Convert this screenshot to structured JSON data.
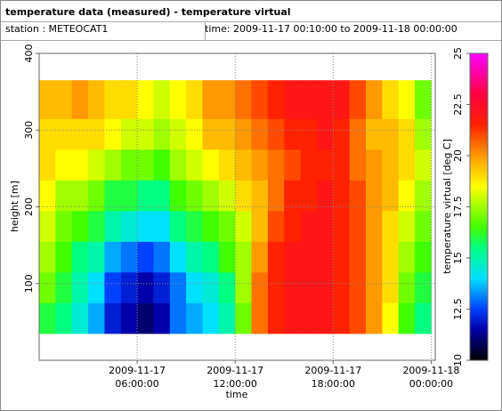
{
  "header": {
    "title": "temperature data (measured) - temperature virtual",
    "station": "station : METEOCAT1",
    "time_range": "time: 2009-11-17 00:10:00 to 2009-11-18 00:00:00"
  },
  "chart_data": {
    "type": "heatmap",
    "x_label": "time",
    "y_label": "height [m]",
    "colorbar_label": "temperature virtual [deg C]",
    "xlim": [
      "2009-11-17 00:00:00",
      "2009-11-18 00:15:00"
    ],
    "xticks": [
      {
        "value": "2009-11-17 06:00:00",
        "label": "2009-11-17 06:00:00"
      },
      {
        "value": "2009-11-17 12:00:00",
        "label": "2009-11-17 12:00:00"
      },
      {
        "value": "2009-11-17 18:00:00",
        "label": "2009-11-17 18:00:00"
      },
      {
        "value": "2009-11-18 00:00:00",
        "label": "2009-11-18 00:00:00"
      }
    ],
    "ylim": [
      0,
      400
    ],
    "yticks": [
      100,
      200,
      300,
      400
    ],
    "grid": true,
    "zlim": [
      10,
      25
    ],
    "zticks": [
      10,
      12.5,
      15,
      17.5,
      20,
      22.5,
      25
    ],
    "colorscale": [
      [
        10,
        "#000000"
      ],
      [
        11.5,
        "#0000aa"
      ],
      [
        12.5,
        "#0040ff"
      ],
      [
        14,
        "#00e0ff"
      ],
      [
        15.5,
        "#00ff80"
      ],
      [
        16.5,
        "#40ff00"
      ],
      [
        18.5,
        "#ffff00"
      ],
      [
        20,
        "#ff9900"
      ],
      [
        21.5,
        "#ff2200"
      ],
      [
        23,
        "#ff0040"
      ],
      [
        25,
        "#ff00ff"
      ]
    ],
    "x_bins": [
      "2009-11-17 00:00:00",
      "2009-11-17 01:00:00",
      "2009-11-17 02:00:00",
      "2009-11-17 03:00:00",
      "2009-11-17 04:00:00",
      "2009-11-17 05:00:00",
      "2009-11-17 06:00:00",
      "2009-11-17 07:00:00",
      "2009-11-17 08:00:00",
      "2009-11-17 09:00:00",
      "2009-11-17 10:00:00",
      "2009-11-17 11:00:00",
      "2009-11-17 12:00:00",
      "2009-11-17 13:00:00",
      "2009-11-17 14:00:00",
      "2009-11-17 15:00:00",
      "2009-11-17 16:00:00",
      "2009-11-17 17:00:00",
      "2009-11-17 18:00:00",
      "2009-11-17 19:00:00",
      "2009-11-17 20:00:00",
      "2009-11-17 21:00:00",
      "2009-11-17 22:00:00",
      "2009-11-17 23:00:00",
      "2009-11-18 00:00:00"
    ],
    "y_bins": [
      35,
      75,
      115,
      155,
      195,
      235,
      275,
      315,
      365
    ],
    "values": [
      [
        16,
        17,
        17.5,
        18,
        18.5,
        19,
        19,
        19.5
      ],
      [
        15.5,
        16,
        16.5,
        17,
        17.5,
        18.5,
        19,
        19.5
      ],
      [
        14.5,
        15,
        15.5,
        16.5,
        17.5,
        18.5,
        19,
        20
      ],
      [
        13.5,
        14,
        15,
        16,
        17,
        18,
        19,
        19.5
      ],
      [
        12,
        12.5,
        13.5,
        15,
        16,
        17.5,
        18.5,
        19
      ],
      [
        11.5,
        12,
        13,
        14.5,
        16,
        17,
        18,
        19
      ],
      [
        11,
        11.5,
        12.5,
        14,
        15.5,
        17,
        18,
        18.5
      ],
      [
        11.5,
        12,
        13,
        14,
        15.5,
        16.5,
        17.5,
        18
      ],
      [
        13,
        13,
        14,
        15.5,
        16.5,
        17.5,
        18,
        18.5
      ],
      [
        13.5,
        14,
        15,
        16,
        17,
        18,
        18.5,
        19
      ],
      [
        14,
        14.5,
        15.5,
        16.5,
        17.5,
        18.5,
        19.5,
        20
      ],
      [
        15,
        15.5,
        16.5,
        17,
        18,
        19,
        19.5,
        20
      ],
      [
        17,
        17.5,
        17.5,
        18,
        19,
        19.5,
        20,
        20.5
      ],
      [
        20.5,
        20.5,
        20,
        19.5,
        19.5,
        20,
        20.5,
        21
      ],
      [
        21.5,
        21.5,
        21.5,
        21,
        20.5,
        20.5,
        21,
        21.5
      ],
      [
        22,
        22,
        22,
        21.5,
        21.5,
        21,
        21.5,
        22
      ],
      [
        22,
        22,
        22,
        22,
        21.5,
        21.5,
        21.5,
        22
      ],
      [
        22,
        22,
        22,
        22,
        22,
        21.5,
        22,
        22
      ],
      [
        21.5,
        21.5,
        21.5,
        21.5,
        21.5,
        21.5,
        21.5,
        22
      ],
      [
        21,
        21,
        21,
        21,
        21,
        20.5,
        20.5,
        21
      ],
      [
        20,
        20,
        20,
        20,
        20,
        20,
        19.5,
        20
      ],
      [
        18.5,
        19,
        19,
        19,
        19.5,
        19.5,
        19.5,
        19
      ],
      [
        16.5,
        17,
        17.5,
        18,
        18.5,
        19,
        19,
        18.5
      ],
      [
        15.5,
        16,
        16.5,
        17,
        17.5,
        18,
        17.5,
        17
      ]
    ]
  }
}
